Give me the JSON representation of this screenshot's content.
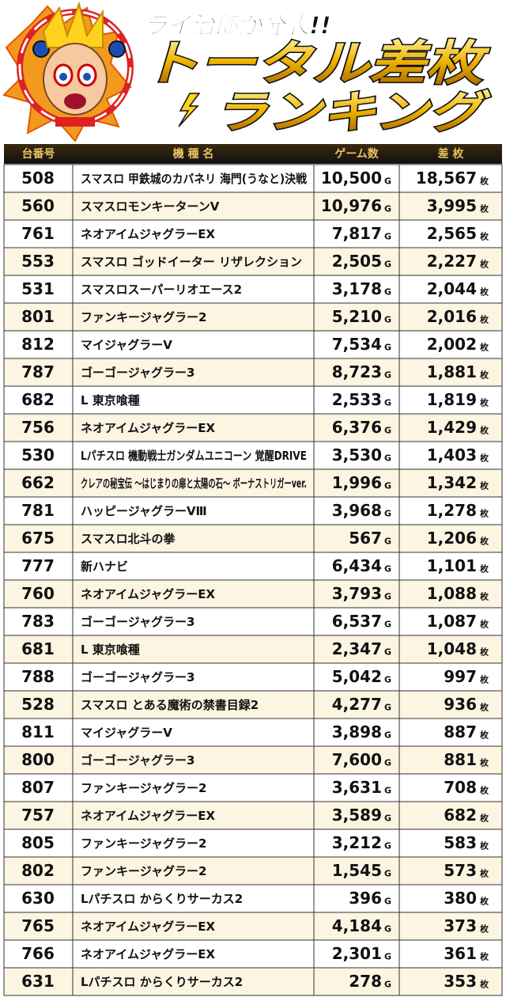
{
  "header": {
    "subtitle": "ライ治郎が発表!!",
    "title_lines": [
      "トータル差枚",
      "ランキング"
    ]
  },
  "table": {
    "columns": [
      "台番号",
      "機 種 名",
      "ゲーム数",
      "差 枚"
    ],
    "game_unit": "G",
    "diff_unit": "枚",
    "rows": [
      [
        "508",
        "スマスロ 甲鉄城のカバネリ 海門(うなと)決戦",
        "10,500",
        "18,567"
      ],
      [
        "560",
        "スマスロモンキーターンV",
        "10,976",
        "3,995"
      ],
      [
        "761",
        "ネオアイムジャグラーEX",
        "7,817",
        "2,565"
      ],
      [
        "553",
        "スマスロ ゴッドイーター リザレクション",
        "2,505",
        "2,227"
      ],
      [
        "531",
        "スマスロスーパーリオエース2",
        "3,178",
        "2,044"
      ],
      [
        "801",
        "ファンキージャグラー2",
        "5,210",
        "2,016"
      ],
      [
        "812",
        "マイジャグラーV",
        "7,534",
        "2,002"
      ],
      [
        "787",
        "ゴーゴージャグラー3",
        "8,723",
        "1,881"
      ],
      [
        "682",
        "L 東京喰種",
        "2,533",
        "1,819"
      ],
      [
        "756",
        "ネオアイムジャグラーEX",
        "6,376",
        "1,429"
      ],
      [
        "530",
        "Lパチスロ 機動戦士ガンダムユニコーン 覚醒DRIVE",
        "3,530",
        "1,403"
      ],
      [
        "662",
        "クレアの秘宝伝 ～はじまりの扉と太陽の石～ ボーナストリガーver.",
        "1,996",
        "1,342"
      ],
      [
        "781",
        "ハッピージャグラーVⅢ",
        "3,968",
        "1,278"
      ],
      [
        "675",
        "スマスロ北斗の拳",
        "567",
        "1,206"
      ],
      [
        "777",
        "新ハナビ",
        "6,434",
        "1,101"
      ],
      [
        "760",
        "ネオアイムジャグラーEX",
        "3,793",
        "1,088"
      ],
      [
        "783",
        "ゴーゴージャグラー3",
        "6,537",
        "1,087"
      ],
      [
        "681",
        "L 東京喰種",
        "2,347",
        "1,048"
      ],
      [
        "788",
        "ゴーゴージャグラー3",
        "5,042",
        "997"
      ],
      [
        "528",
        "スマスロ とある魔術の禁書目録2",
        "4,277",
        "936"
      ],
      [
        "811",
        "マイジャグラーV",
        "3,898",
        "887"
      ],
      [
        "800",
        "ゴーゴージャグラー3",
        "7,600",
        "881"
      ],
      [
        "807",
        "ファンキージャグラー2",
        "3,631",
        "708"
      ],
      [
        "757",
        "ネオアイムジャグラーEX",
        "3,589",
        "682"
      ],
      [
        "805",
        "ファンキージャグラー2",
        "3,212",
        "583"
      ],
      [
        "802",
        "ファンキージャグラー2",
        "1,545",
        "573"
      ],
      [
        "630",
        "Lパチスロ からくりサーカス2",
        "396",
        "380"
      ],
      [
        "765",
        "ネオアイムジャグラーEX",
        "4,184",
        "373"
      ],
      [
        "766",
        "ネオアイムジャグラーEX",
        "2,301",
        "361"
      ],
      [
        "631",
        "Lパチスロ からくりサーカス2",
        "278",
        "353"
      ]
    ]
  }
}
